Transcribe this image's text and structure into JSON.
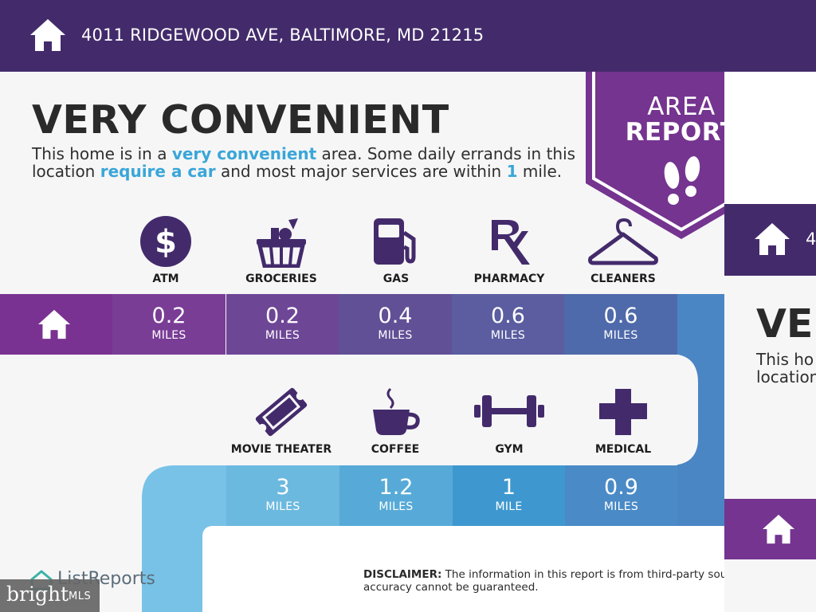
{
  "header": {
    "address": "4011 RIDGEWOOD AVE, BALTIMORE, MD 21215",
    "home_icon": "house-icon"
  },
  "badge": {
    "line1": "AREA",
    "line2": "REPORT",
    "icon": "footprints-icon",
    "color": "#74348f"
  },
  "headline": "VERY CONVENIENT",
  "description": {
    "p1": "This home is in a ",
    "h1": "very convenient",
    "p2": " area. Some daily errands in this location ",
    "h2": "require a car",
    "p3": " and most major services are within ",
    "h3": "1",
    "p4": " mile."
  },
  "services_row1": [
    {
      "label": "ATM",
      "icon": "dollar-icon",
      "value": "0.2",
      "unit": "MILES",
      "color": "#7a3d96"
    },
    {
      "label": "GROCERIES",
      "icon": "grocery-basket-icon",
      "value": "0.2",
      "unit": "MILES",
      "color": "#6e4696"
    },
    {
      "label": "GAS",
      "icon": "gas-pump-icon",
      "value": "0.4",
      "unit": "MILES",
      "color": "#615096"
    },
    {
      "label": "PHARMACY",
      "icon": "rx-icon",
      "value": "0.6",
      "unit": "MILES",
      "color": "#5b5da0"
    },
    {
      "label": "CLEANERS",
      "icon": "hanger-icon",
      "value": "0.6",
      "unit": "MILES",
      "color": "#4f6aaa"
    }
  ],
  "services_row2": [
    {
      "label": "MOVIE THEATER",
      "icon": "ticket-icon",
      "value": "3",
      "unit": "MILES",
      "color": "#6cb9df"
    },
    {
      "label": "COFFEE",
      "icon": "coffee-cup-icon",
      "value": "1.2",
      "unit": "MILES",
      "color": "#57aad7"
    },
    {
      "label": "GYM",
      "icon": "dumbbell-icon",
      "value": "1",
      "unit": "MILE",
      "color": "#3e98cf"
    },
    {
      "label": "MEDICAL",
      "icon": "medical-cross-icon",
      "value": "0.9",
      "unit": "MILES",
      "color": "#4a8ac6"
    }
  ],
  "disclaimer": {
    "label": "DISCLAIMER:",
    "line1": " The information in this report is from third-party sour",
    "line2": "accuracy cannot be guaranteed."
  },
  "brand": {
    "listreports": "ListReports",
    "bright": "bright",
    "mls": "MLS"
  },
  "next_page": {
    "address": "4",
    "headline": "VE",
    "line1": "This ho",
    "line2": "location"
  }
}
